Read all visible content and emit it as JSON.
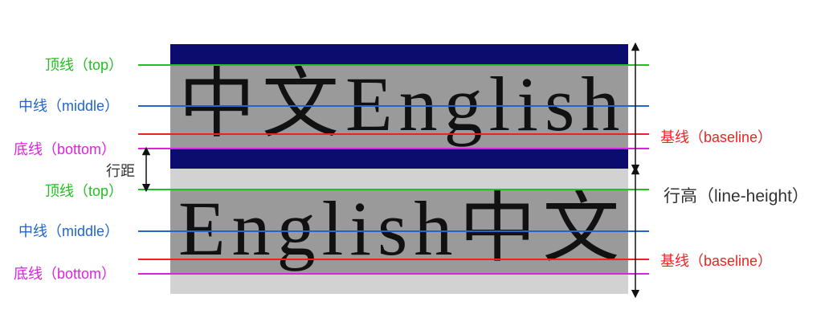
{
  "colors": {
    "navy": "#0c0c6e",
    "grey_box": "#9a9a9a",
    "light_grey": "#d2d2d2",
    "top_line": "#22c022",
    "middle_line": "#2266cc",
    "baseline": "#ee2222",
    "bottom_line": "#dd22dd",
    "dark": "#333333"
  },
  "rows": [
    {
      "sample_text": "中文English",
      "top_label": "顶线（top）",
      "middle_label": "中线（middle）",
      "baseline_label": "基线（baseline）",
      "bottom_label": "底线（bottom）"
    },
    {
      "sample_text": "English中文",
      "top_label": "顶线（top）",
      "middle_label": "中线（middle）",
      "baseline_label": "基线（baseline）",
      "bottom_label": "底线（bottom）"
    }
  ],
  "line_gap_label": "行距",
  "line_height_label": "行高（line-height）"
}
